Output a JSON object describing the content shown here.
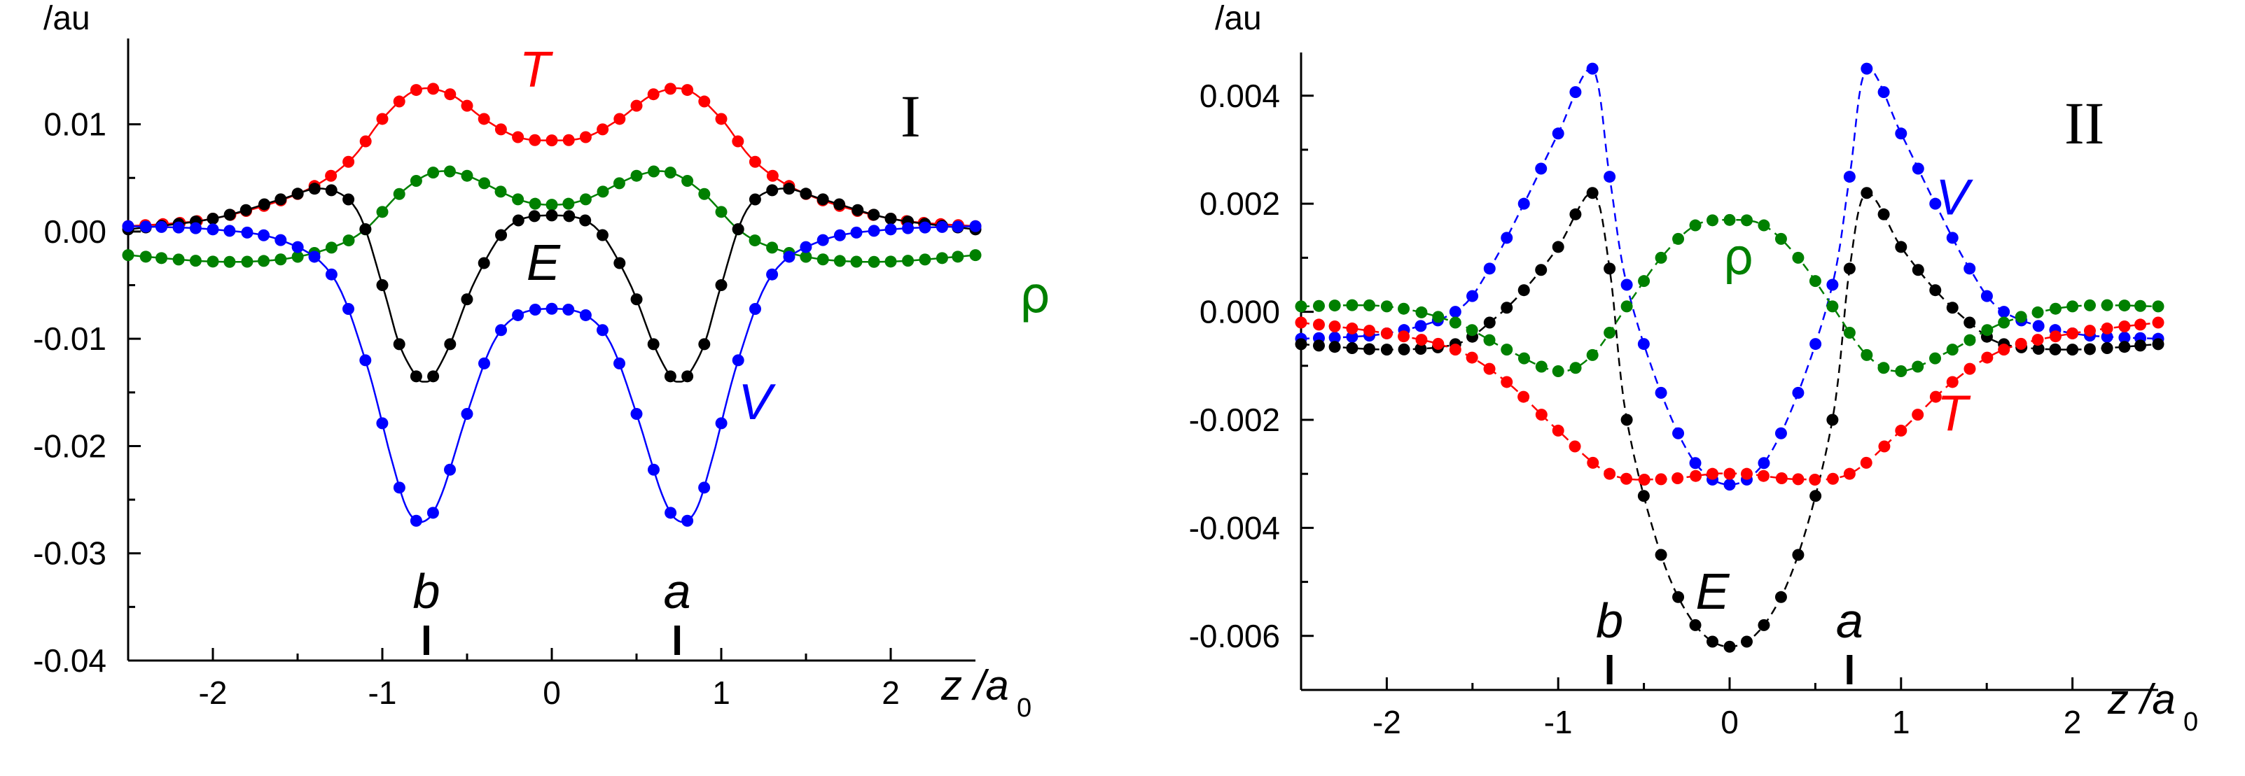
{
  "chart_data": [
    {
      "type": "line",
      "panel_label": "I",
      "ylabel": "/au",
      "xlabel_main": "z /a",
      "xlabel_sub": "0",
      "xlim": [
        -2.5,
        2.5
      ],
      "ylim": [
        -0.04,
        0.018
      ],
      "xticks": [
        -2,
        -1,
        0,
        1,
        2
      ],
      "xtick_labels": [
        "-2",
        "-1",
        "0",
        "1",
        "2"
      ],
      "yticks": [
        0.01,
        0.0,
        -0.01,
        -0.02,
        -0.03,
        -0.04
      ],
      "ytick_labels": [
        "0.01",
        "0.00",
        "-0.01",
        "-0.02",
        "-0.03",
        "-0.04"
      ],
      "markers": [
        {
          "label": "b",
          "x": -0.74
        },
        {
          "label": "a",
          "x": 0.74
        }
      ],
      "series": [
        {
          "name": "T",
          "color": "#ff0000",
          "dash": false,
          "label_pos": [
            -0.1,
            0.0135
          ],
          "x": [
            -2.5,
            -2.0,
            -1.5,
            -1.2,
            -1.0,
            -0.8,
            -0.6,
            -0.4,
            -0.2,
            0.0,
            0.2,
            0.4,
            0.6,
            0.8,
            1.0,
            1.2,
            1.5,
            2.0,
            2.5
          ],
          "y": [
            0.0005,
            0.0012,
            0.0035,
            0.0065,
            0.0105,
            0.0132,
            0.0128,
            0.0105,
            0.0088,
            0.0085,
            0.0088,
            0.0105,
            0.0128,
            0.0132,
            0.0105,
            0.0065,
            0.0035,
            0.0012,
            0.0005
          ]
        },
        {
          "name": "ρ",
          "color": "#008000",
          "dash": false,
          "label_pos": [
            2.85,
            -0.0075
          ],
          "greek": true,
          "x": [
            -2.5,
            -2.0,
            -1.6,
            -1.3,
            -1.1,
            -0.9,
            -0.7,
            -0.5,
            -0.2,
            0.0,
            0.2,
            0.5,
            0.7,
            0.9,
            1.1,
            1.3,
            1.6,
            2.0,
            2.5
          ],
          "y": [
            -0.0022,
            -0.0028,
            -0.0026,
            -0.0015,
            0.0002,
            0.0035,
            0.0055,
            0.0052,
            0.003,
            0.0025,
            0.003,
            0.0052,
            0.0055,
            0.0035,
            0.0002,
            -0.0015,
            -0.0026,
            -0.0028,
            -0.0022
          ]
        },
        {
          "name": "E",
          "color": "#000000",
          "dash": false,
          "label_pos": [
            -0.05,
            -0.0045
          ],
          "x": [
            -2.5,
            -2.0,
            -1.6,
            -1.35,
            -1.15,
            -1.0,
            -0.9,
            -0.8,
            -0.75,
            -0.7,
            -0.6,
            -0.45,
            -0.25,
            0.0,
            0.25,
            0.45,
            0.6,
            0.7,
            0.75,
            0.8,
            0.9,
            1.0,
            1.15,
            1.35,
            1.6,
            2.0,
            2.5
          ],
          "y": [
            0.0002,
            0.0012,
            0.003,
            0.004,
            0.002,
            -0.005,
            -0.0105,
            -0.0135,
            -0.014,
            -0.0135,
            -0.0105,
            -0.0045,
            0.0005,
            0.0015,
            0.0005,
            -0.0045,
            -0.0105,
            -0.0135,
            -0.014,
            -0.0135,
            -0.0105,
            -0.005,
            0.002,
            0.004,
            0.003,
            0.0012,
            0.0002
          ]
        },
        {
          "name": "V",
          "color": "#0000ff",
          "dash": false,
          "label_pos": [
            1.2,
            -0.0175
          ],
          "x": [
            -2.5,
            -2.0,
            -1.6,
            -1.3,
            -1.1,
            -0.95,
            -0.85,
            -0.75,
            -0.65,
            -0.5,
            -0.35,
            -0.2,
            0.0,
            0.2,
            0.35,
            0.5,
            0.65,
            0.75,
            0.85,
            0.95,
            1.1,
            1.3,
            1.6,
            2.0,
            2.5
          ],
          "y": [
            0.0005,
            0.0002,
            -0.0008,
            -0.004,
            -0.012,
            -0.021,
            -0.026,
            -0.027,
            -0.0245,
            -0.017,
            -0.0105,
            -0.0078,
            -0.0072,
            -0.0078,
            -0.0105,
            -0.017,
            -0.0245,
            -0.027,
            -0.026,
            -0.021,
            -0.012,
            -0.004,
            -0.0008,
            0.0002,
            0.0005
          ]
        }
      ]
    },
    {
      "type": "line",
      "panel_label": "II",
      "ylabel": "/au",
      "xlabel_main": "z /a",
      "xlabel_sub": "0",
      "xlim": [
        -2.5,
        2.5
      ],
      "ylim": [
        -0.007,
        0.0048
      ],
      "xticks": [
        -2,
        -1,
        0,
        1,
        2
      ],
      "xtick_labels": [
        "-2",
        "-1",
        "0",
        "1",
        "2"
      ],
      "yticks": [
        0.004,
        0.002,
        0.0,
        -0.002,
        -0.004,
        -0.006
      ],
      "ytick_labels": [
        "0.004",
        "0.002",
        "0.000",
        "-0.002",
        "-0.004",
        "-0.006"
      ],
      "markers": [
        {
          "label": "b",
          "x": -0.7
        },
        {
          "label": "a",
          "x": 0.7
        }
      ],
      "series": [
        {
          "name": "V",
          "color": "#0000ff",
          "dash": true,
          "label_pos": [
            1.3,
            0.0018
          ],
          "x": [
            -2.5,
            -2.0,
            -1.6,
            -1.4,
            -1.2,
            -1.0,
            -0.8,
            -0.7,
            -0.6,
            -0.4,
            -0.2,
            0.0,
            0.2,
            0.4,
            0.6,
            0.7,
            0.8,
            1.0,
            1.2,
            1.4,
            1.6,
            2.0,
            2.5
          ],
          "y": [
            -0.0005,
            -0.0004,
            0.0,
            0.0008,
            0.002,
            0.0033,
            0.0045,
            0.0025,
            0.0005,
            -0.0015,
            -0.0028,
            -0.0032,
            -0.0028,
            -0.0015,
            0.0005,
            0.0025,
            0.0045,
            0.0033,
            0.002,
            0.0008,
            0.0,
            -0.0004,
            -0.0005
          ]
        },
        {
          "name": "E",
          "color": "#000000",
          "dash": true,
          "label_pos": [
            -0.1,
            -0.0055
          ],
          "x": [
            -2.5,
            -2.0,
            -1.6,
            -1.4,
            -1.2,
            -1.0,
            -0.8,
            -0.7,
            -0.6,
            -0.4,
            -0.2,
            0.0,
            0.2,
            0.4,
            0.6,
            0.7,
            0.8,
            1.0,
            1.2,
            1.4,
            1.6,
            2.0,
            2.5
          ],
          "y": [
            -0.0006,
            -0.0007,
            -0.0006,
            -0.0002,
            0.0004,
            0.0012,
            0.0022,
            0.0008,
            -0.002,
            -0.0045,
            -0.0058,
            -0.0062,
            -0.0058,
            -0.0045,
            -0.002,
            0.0008,
            0.0022,
            0.0012,
            0.0004,
            -0.0002,
            -0.0006,
            -0.0007,
            -0.0006
          ]
        },
        {
          "name": "ρ",
          "color": "#008000",
          "dash": true,
          "label_pos": [
            0.05,
            0.0007
          ],
          "greek": true,
          "x": [
            -2.5,
            -2.0,
            -1.6,
            -1.3,
            -1.0,
            -0.8,
            -0.6,
            -0.4,
            -0.2,
            0.0,
            0.2,
            0.4,
            0.6,
            0.8,
            1.0,
            1.3,
            1.6,
            2.0,
            2.5
          ],
          "y": [
            0.0001,
            0.0001,
            -0.0002,
            -0.0007,
            -0.0011,
            -0.0008,
            0.0001,
            0.001,
            0.0016,
            0.0017,
            0.0016,
            0.001,
            0.0001,
            -0.0008,
            -0.0011,
            -0.0007,
            -0.0002,
            0.0001,
            0.0001
          ]
        },
        {
          "name": "T",
          "color": "#ff0000",
          "dash": true,
          "label_pos": [
            1.3,
            -0.0022
          ],
          "x": [
            -2.5,
            -2.0,
            -1.6,
            -1.3,
            -1.0,
            -0.7,
            -0.4,
            -0.1,
            0.0,
            0.1,
            0.4,
            0.7,
            1.0,
            1.3,
            1.6,
            2.0,
            2.5
          ],
          "y": [
            -0.0002,
            -0.0004,
            -0.0007,
            -0.0013,
            -0.0022,
            -0.003,
            -0.0031,
            -0.003,
            -0.003,
            -0.003,
            -0.0031,
            -0.003,
            -0.0022,
            -0.0013,
            -0.0007,
            -0.0004,
            -0.0002
          ]
        }
      ]
    }
  ]
}
